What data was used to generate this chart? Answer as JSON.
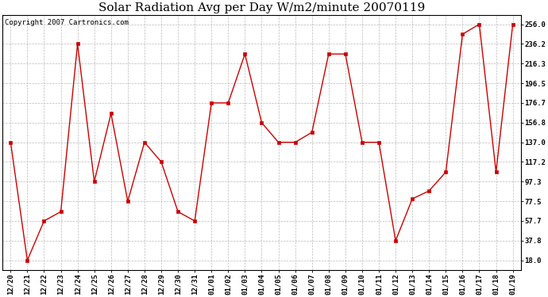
{
  "title": "Solar Radiation Avg per Day W/m2/minute 20070119",
  "copyright_text": "Copyright 2007 Cartronics.com",
  "x_labels": [
    "12/20",
    "12/21",
    "12/22",
    "12/23",
    "12/24",
    "12/25",
    "12/26",
    "12/27",
    "12/28",
    "12/29",
    "12/30",
    "12/31",
    "01/01",
    "01/02",
    "01/03",
    "01/04",
    "01/05",
    "01/06",
    "01/07",
    "01/08",
    "01/09",
    "01/10",
    "01/11",
    "01/12",
    "01/13",
    "01/14",
    "01/15",
    "01/16",
    "01/17",
    "01/18",
    "01/19"
  ],
  "values": [
    137.0,
    18.0,
    57.7,
    67.0,
    236.2,
    97.3,
    166.0,
    77.5,
    137.0,
    117.2,
    67.0,
    57.7,
    176.7,
    176.7,
    226.0,
    156.8,
    137.0,
    137.0,
    147.0,
    226.0,
    226.0,
    137.0,
    137.0,
    37.8,
    80.0,
    88.0,
    107.0,
    246.0,
    256.0,
    107.0,
    256.0
  ],
  "line_color": "#cc0000",
  "marker_color": "#cc0000",
  "background_color": "#ffffff",
  "plot_bg_color": "#ffffff",
  "grid_color": "#bbbbbb",
  "y_ticks": [
    18.0,
    37.8,
    57.7,
    77.5,
    97.3,
    117.2,
    137.0,
    156.8,
    176.7,
    196.5,
    216.3,
    236.2,
    256.0
  ],
  "y_labels": [
    "18.0",
    "37.8",
    "57.7",
    "77.5",
    "97.3",
    "117.2",
    "137.0",
    "156.8",
    "176.7",
    "196.5",
    "216.3",
    "236.2",
    "256.0"
  ],
  "ylim_min": 8.0,
  "ylim_max": 265.0,
  "title_fontsize": 11,
  "copyright_fontsize": 6.5,
  "tick_fontsize": 6.5,
  "axis_label_fontsize": 7
}
